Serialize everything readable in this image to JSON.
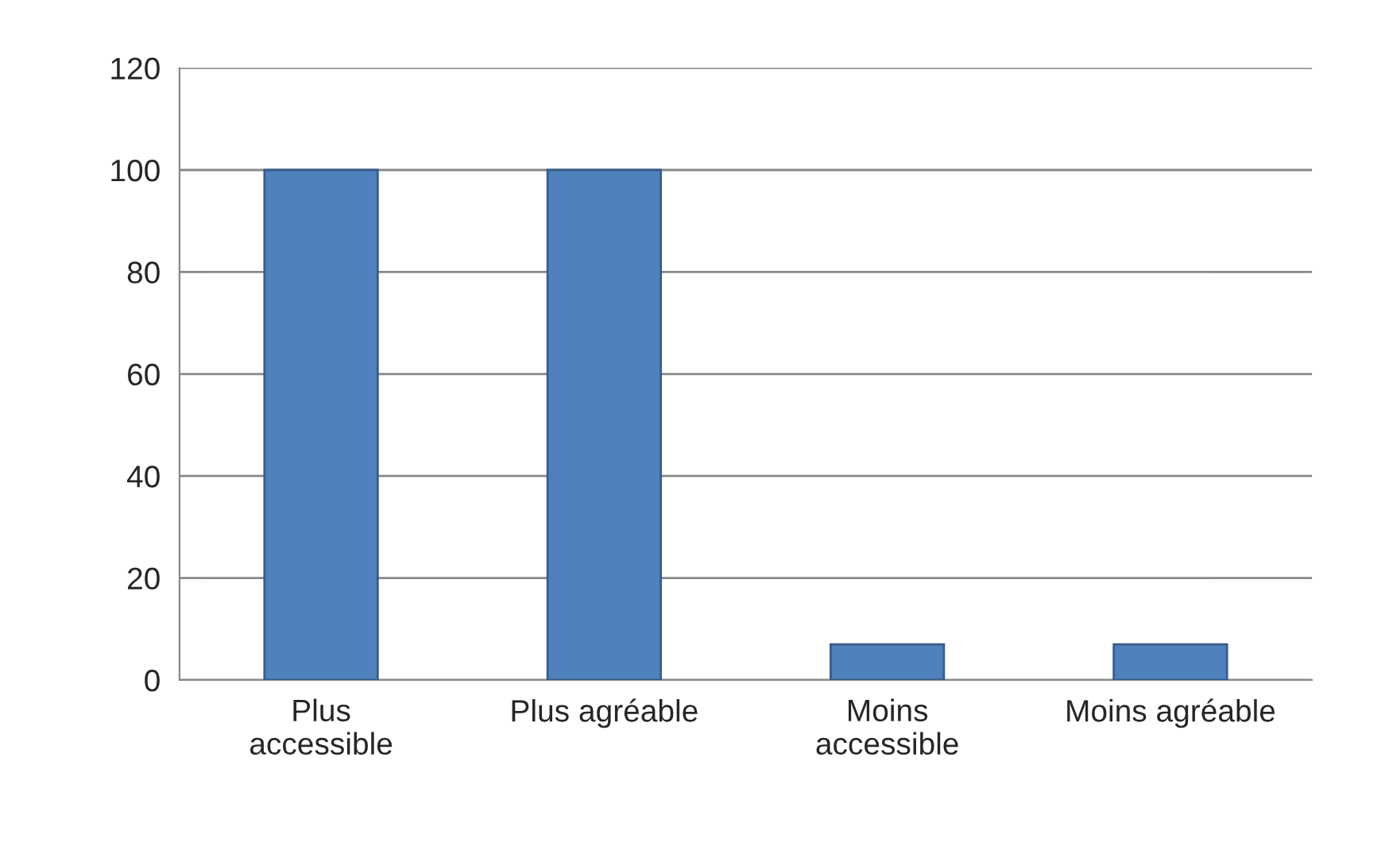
{
  "chart_data": {
    "type": "bar",
    "categories": [
      "Plus accessible",
      "Plus agréable",
      "Moins accessible",
      "Moins agréable"
    ],
    "values": [
      100,
      100,
      7,
      7
    ],
    "color": "#4f81bd",
    "ylim": [
      0,
      120
    ],
    "yticks": [
      0,
      20,
      40,
      60,
      80,
      100,
      120
    ],
    "grid": "y"
  }
}
